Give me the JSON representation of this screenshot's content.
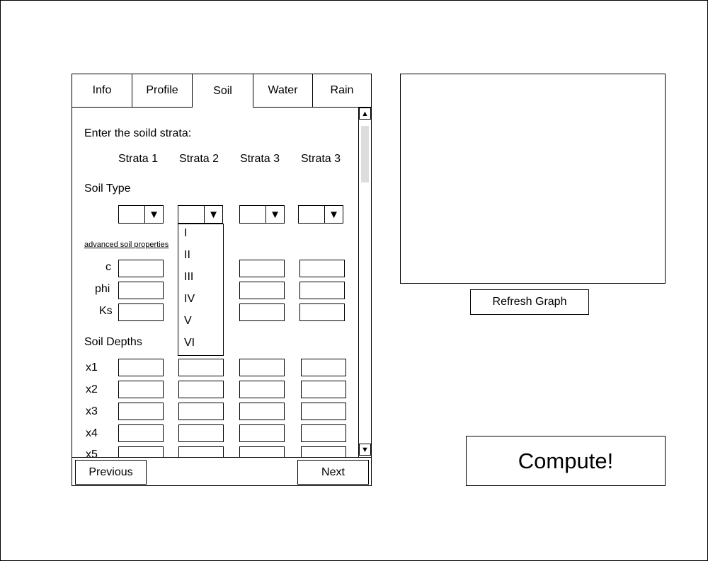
{
  "tabs": [
    "Info",
    "Profile",
    "Soil",
    "Water",
    "Rain"
  ],
  "active_tab": "Soil",
  "soil": {
    "intro": "Enter the soild strata:",
    "strata_headers": [
      "Strata 1",
      "Strata 2",
      "Strata 3",
      "Strata 3"
    ],
    "soil_type_label": "Soil Type",
    "dropdown_options": [
      "I",
      "II",
      "III",
      "IV",
      "V",
      "VI"
    ],
    "advanced_link": "advanced soil properties",
    "prop_labels": [
      "c",
      "phi",
      "Ks"
    ],
    "depths_label": "Soil Depths",
    "depth_labels": [
      "x1",
      "x2",
      "x3",
      "x4",
      "x5"
    ]
  },
  "nav": {
    "previous": "Previous",
    "next": "Next"
  },
  "refresh_graph": "Refresh Graph",
  "compute": "Compute!"
}
